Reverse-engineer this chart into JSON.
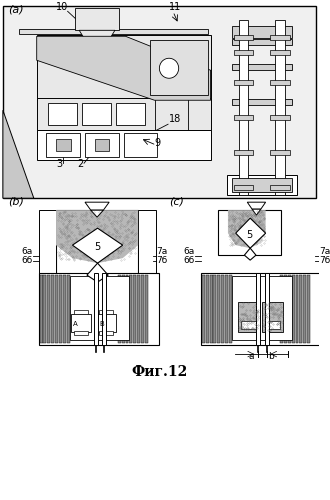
{
  "title": "Фиг.12",
  "bg_color": "#ffffff",
  "panel_a_label": "(a)",
  "panel_b_label": "(b)",
  "panel_c_label": "(c)",
  "labels": {
    "a_10": "10",
    "a_11": "11",
    "a_18": "18",
    "a_3": "3",
    "a_2": "2",
    "a_9": "9",
    "b_6a": "6a",
    "b_6b": "6б",
    "b_5": "5",
    "b_7a": "7a",
    "b_7b": "7б",
    "c_6a": "6a",
    "c_6b": "6б",
    "c_5": "5",
    "c_7a": "7a",
    "c_7b": "7б",
    "c_a": "a",
    "c_b": "b"
  },
  "sand_color": "#b8b8b8",
  "line_color": "#000000"
}
